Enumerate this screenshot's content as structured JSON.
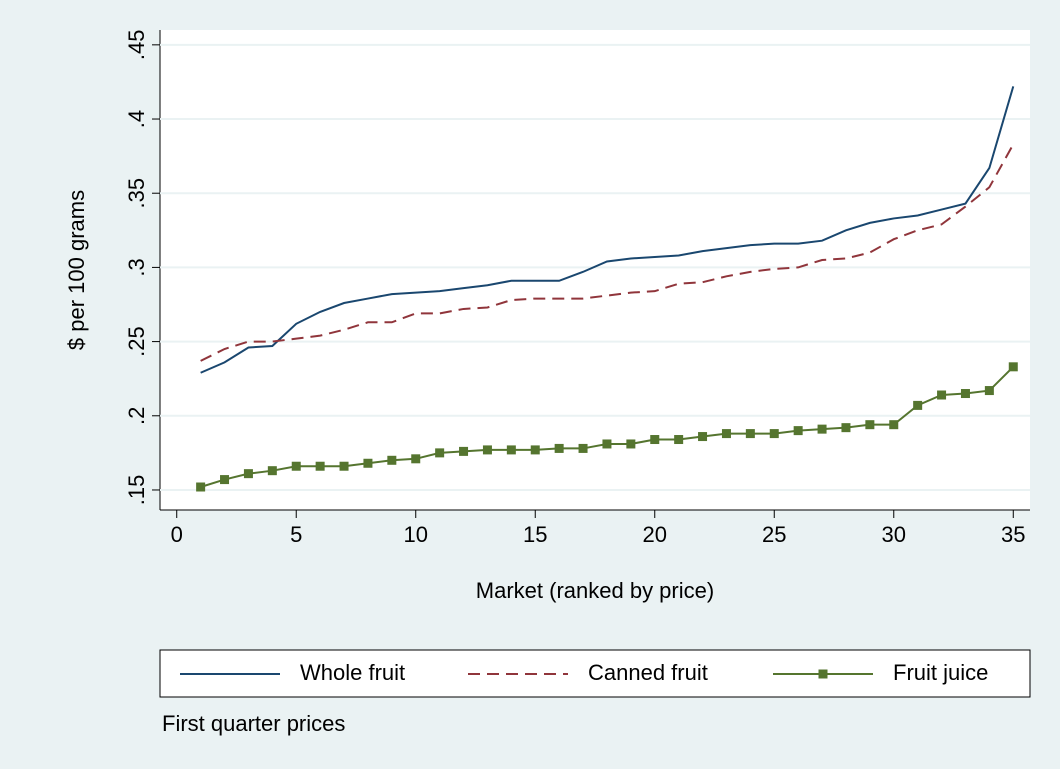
{
  "chart_data": {
    "type": "line",
    "x": [
      1,
      2,
      3,
      4,
      5,
      6,
      7,
      8,
      9,
      10,
      11,
      12,
      13,
      14,
      15,
      16,
      17,
      18,
      19,
      20,
      21,
      22,
      23,
      24,
      25,
      26,
      27,
      28,
      29,
      30,
      31,
      32,
      33,
      34,
      35
    ],
    "series": [
      {
        "name": "Whole fruit",
        "color": "#1a476f",
        "dash": "solid",
        "marker": "none",
        "values": [
          0.229,
          0.236,
          0.246,
          0.247,
          0.262,
          0.27,
          0.276,
          0.279,
          0.282,
          0.283,
          0.284,
          0.286,
          0.288,
          0.291,
          0.291,
          0.291,
          0.297,
          0.304,
          0.306,
          0.307,
          0.308,
          0.311,
          0.313,
          0.315,
          0.316,
          0.316,
          0.318,
          0.325,
          0.33,
          0.333,
          0.335,
          0.339,
          0.343,
          0.367,
          0.422
        ]
      },
      {
        "name": "Canned fruit",
        "color": "#90353b",
        "dash": "dashed",
        "marker": "none",
        "values": [
          0.237,
          0.245,
          0.25,
          0.25,
          0.252,
          0.254,
          0.258,
          0.263,
          0.263,
          0.269,
          0.269,
          0.272,
          0.273,
          0.278,
          0.279,
          0.279,
          0.279,
          0.281,
          0.283,
          0.284,
          0.289,
          0.29,
          0.294,
          0.297,
          0.299,
          0.3,
          0.305,
          0.306,
          0.31,
          0.319,
          0.325,
          0.329,
          0.341,
          0.354,
          0.383
        ]
      },
      {
        "name": "Fruit juice",
        "color": "#55752f",
        "dash": "solid",
        "marker": "square",
        "values": [
          0.152,
          0.157,
          0.161,
          0.163,
          0.166,
          0.166,
          0.166,
          0.168,
          0.17,
          0.171,
          0.175,
          0.176,
          0.177,
          0.177,
          0.177,
          0.178,
          0.178,
          0.181,
          0.181,
          0.184,
          0.184,
          0.186,
          0.188,
          0.188,
          0.188,
          0.19,
          0.191,
          0.192,
          0.194,
          0.194,
          0.207,
          0.214,
          0.215,
          0.217,
          0.233
        ]
      }
    ],
    "xlabel": "Market (ranked by price)",
    "ylabel": "$ per 100 grams",
    "note": "First quarter prices",
    "xlim": [
      -0.7,
      35.7
    ],
    "ylim": [
      0.1365,
      0.46
    ],
    "xticks": [
      0,
      5,
      10,
      15,
      20,
      25,
      30,
      35
    ],
    "yticks": [
      {
        "value": 0.15,
        "label": ".15"
      },
      {
        "value": 0.2,
        "label": ".2"
      },
      {
        "value": 0.25,
        "label": ".25"
      },
      {
        "value": 0.3,
        "label": ".3"
      },
      {
        "value": 0.35,
        "label": ".35"
      },
      {
        "value": 0.4,
        "label": ".4"
      },
      {
        "value": 0.45,
        "label": ".45"
      }
    ],
    "grid": true,
    "legend": "bottom"
  }
}
